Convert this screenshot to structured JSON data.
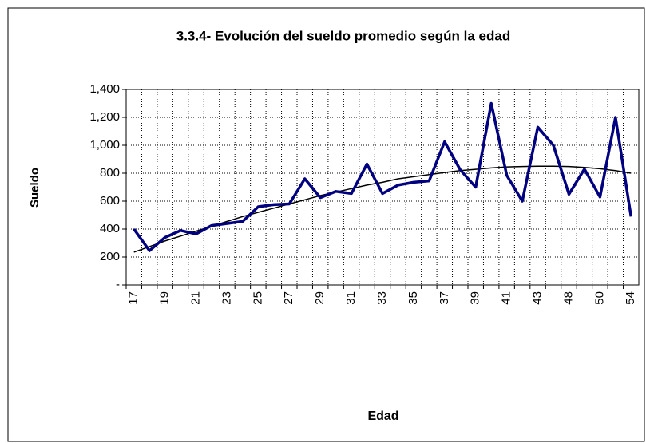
{
  "chart_data": {
    "type": "line",
    "title": "3.3.4- Evolución del sueldo promedio según la edad",
    "xlabel": "Edad",
    "ylabel": "Sueldo",
    "categories": [
      "17",
      null,
      "19",
      null,
      "21",
      null,
      "23",
      null,
      "25",
      null,
      "27",
      null,
      "29",
      null,
      "31",
      null,
      "33",
      null,
      "35",
      null,
      "37",
      null,
      "39",
      null,
      "41",
      null,
      "43",
      null,
      "48",
      null,
      "50",
      null,
      "54"
    ],
    "series": [
      {
        "color": "#000080",
        "values": [
          400,
          245,
          340,
          390,
          365,
          425,
          440,
          455,
          560,
          575,
          580,
          760,
          625,
          670,
          655,
          865,
          655,
          715,
          735,
          745,
          1025,
          825,
          700,
          1300,
          785,
          600,
          1130,
          1000,
          650,
          830,
          630,
          1200,
          490
        ]
      },
      {
        "color": "#000000",
        "values": [
          235,
          275,
          315,
          350,
          385,
          420,
          455,
          490,
          520,
          550,
          580,
          610,
          640,
          665,
          690,
          715,
          735,
          760,
          775,
          790,
          805,
          818,
          828,
          838,
          845,
          848,
          850,
          850,
          848,
          842,
          832,
          818,
          800
        ]
      }
    ],
    "ylim": [
      0,
      1400
    ],
    "yticks": [
      {
        "value": 0,
        "label": "-"
      },
      200,
      400,
      600,
      800,
      {
        "value": 1000,
        "label": "1,000"
      },
      {
        "value": 1200,
        "label": "1,200"
      },
      {
        "value": 1400,
        "label": "1,400"
      }
    ],
    "grid": true
  }
}
